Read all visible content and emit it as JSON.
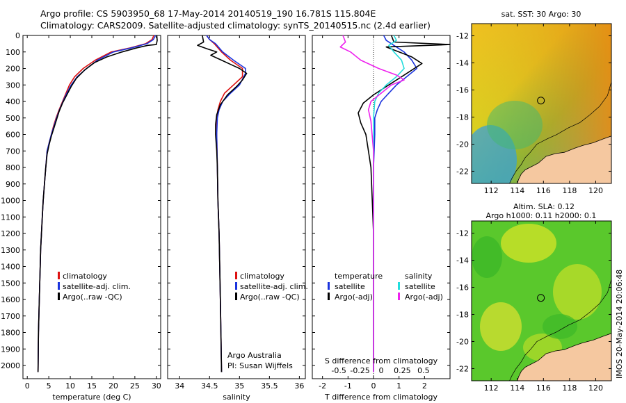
{
  "header": {
    "line1": "Argo profile: CS 5903950_68 17-May-2014 20140519_190 16.781S 115.804E",
    "line2": "Climatology: CARS2009. Satellite-adjusted climatology: synTS_20140515.nc (2.4d earlier)"
  },
  "colors": {
    "climatology": "#dd1111",
    "satellite": "#1a33dd",
    "argo": "#000000",
    "sal_satellite": "#22dddd",
    "sal_argo": "#ee22ee",
    "land": "#f5c8a0"
  },
  "chart_data": [
    {
      "type": "line",
      "name": "temperature-profile",
      "xlabel": "temperature (deg C)",
      "ylabel": "",
      "xlim": [
        -1,
        31
      ],
      "ylim": [
        2080,
        0
      ],
      "xticks": [
        0,
        5,
        10,
        15,
        20,
        25,
        30
      ],
      "yticks": [
        0,
        100,
        200,
        300,
        400,
        500,
        600,
        700,
        800,
        900,
        1000,
        1100,
        1200,
        1300,
        1400,
        1500,
        1600,
        1700,
        1800,
        1900,
        2000
      ],
      "legend": [
        "climatology",
        "satellite-adj. clim.",
        "Argo(..raw -QC)"
      ],
      "series": [
        {
          "name": "climatology",
          "color": "#dd1111",
          "x": [
            29.4,
            29.0,
            27.5,
            24.0,
            19.5,
            15.8,
            13.0,
            11.0,
            9.8,
            9.0,
            8.2,
            7.4,
            6.7,
            6.1,
            5.6,
            5.1,
            4.6,
            4.3,
            4.0,
            3.7,
            3.5,
            3.3,
            3.1,
            3.0,
            2.8,
            2.6,
            2.5
          ],
          "y": [
            0,
            25,
            50,
            75,
            100,
            150,
            200,
            250,
            300,
            350,
            400,
            450,
            500,
            550,
            600,
            650,
            700,
            800,
            900,
            1000,
            1100,
            1200,
            1300,
            1400,
            1600,
            1800,
            2040
          ]
        },
        {
          "name": "satellite-adj. clim.",
          "color": "#1a33dd",
          "x": [
            29.8,
            29.3,
            27.8,
            24.3,
            20.0,
            16.3,
            13.8,
            11.6,
            10.2,
            9.2,
            8.3,
            7.5,
            6.8,
            6.2,
            5.6,
            5.1,
            4.6,
            4.3,
            4.0,
            3.7,
            3.5,
            3.3,
            3.1,
            3.0,
            2.8,
            2.6,
            2.5
          ],
          "y": [
            0,
            25,
            50,
            75,
            100,
            150,
            200,
            250,
            300,
            350,
            400,
            450,
            500,
            550,
            600,
            650,
            700,
            800,
            900,
            1000,
            1100,
            1200,
            1300,
            1400,
            1600,
            1800,
            2040
          ]
        },
        {
          "name": "Argo(..raw -QC)",
          "color": "#000000",
          "x": [
            30.1,
            30.2,
            30.0,
            28.0,
            25.5,
            22.0,
            18.5,
            15.6,
            13.3,
            11.4,
            10.2,
            9.2,
            8.2,
            7.4,
            6.8,
            6.2,
            5.6,
            5.1,
            4.6,
            4.3,
            4.0,
            3.7,
            3.5,
            3.3,
            3.1,
            3.0,
            2.8,
            2.6,
            2.5
          ],
          "y": [
            0,
            30,
            55,
            60,
            75,
            100,
            130,
            165,
            210,
            260,
            310,
            360,
            410,
            460,
            510,
            560,
            610,
            660,
            720,
            800,
            900,
            1000,
            1100,
            1200,
            1300,
            1400,
            1600,
            1800,
            2040
          ]
        }
      ]
    },
    {
      "type": "line",
      "name": "salinity-profile",
      "xlabel": "salinity",
      "xlim": [
        33.8,
        36.1
      ],
      "ylim": [
        2080,
        0
      ],
      "xticks": [
        34,
        34.5,
        35,
        35.5,
        36
      ],
      "legend": [
        "climatology",
        "satellite-adj. clim.",
        "Argo(..raw -QC)"
      ],
      "annotation": [
        "Argo Australia",
        "PI: Susan Wijffels"
      ],
      "series": [
        {
          "name": "climatology",
          "color": "#dd1111",
          "x": [
            34.45,
            34.5,
            34.58,
            34.7,
            34.85,
            35.05,
            35.05,
            34.9,
            34.75,
            34.68,
            34.64,
            34.62,
            34.62,
            34.63,
            34.64,
            34.66,
            34.67,
            34.68,
            34.69,
            34.7
          ],
          "y": [
            0,
            25,
            50,
            100,
            150,
            200,
            250,
            300,
            350,
            400,
            450,
            500,
            600,
            800,
            1000,
            1200,
            1400,
            1600,
            1800,
            2040
          ]
        },
        {
          "name": "satellite-adj. clim.",
          "color": "#1a33dd",
          "x": [
            34.45,
            34.5,
            34.6,
            34.72,
            34.9,
            35.1,
            35.1,
            35.0,
            34.85,
            34.72,
            34.66,
            34.63,
            34.62,
            34.63,
            34.64,
            34.66,
            34.67,
            34.68,
            34.69,
            34.7
          ],
          "y": [
            0,
            25,
            50,
            100,
            150,
            200,
            230,
            300,
            350,
            400,
            450,
            500,
            600,
            800,
            1000,
            1200,
            1400,
            1600,
            1800,
            2040
          ]
        },
        {
          "name": "Argo(..raw -QC)",
          "color": "#000000",
          "x": [
            34.38,
            34.4,
            34.3,
            34.45,
            34.62,
            34.52,
            34.7,
            34.88,
            35.0,
            35.12,
            35.05,
            34.95,
            34.8,
            34.68,
            34.62,
            34.6,
            34.6,
            34.62,
            34.63,
            34.64,
            34.66,
            34.67,
            34.68,
            34.69,
            34.7
          ],
          "y": [
            0,
            40,
            60,
            80,
            100,
            120,
            150,
            180,
            200,
            230,
            270,
            310,
            360,
            420,
            480,
            540,
            600,
            700,
            800,
            1000,
            1200,
            1400,
            1600,
            1800,
            2040
          ]
        }
      ]
    },
    {
      "type": "line",
      "name": "difference-profile",
      "xlabel": "T difference from climatology",
      "xlabel_top": "S difference from climatology",
      "xlim": [
        -2.4,
        3.0
      ],
      "ylim": [
        2080,
        0
      ],
      "xticks": [
        -2,
        -1,
        0,
        1,
        2
      ],
      "xticks_top": [
        -0.5,
        -0.25,
        0,
        0.25,
        0.5
      ],
      "legend_temperature": {
        "title": "temperature",
        "items": [
          "satellite",
          "Argo(-adj)"
        ]
      },
      "legend_salinity": {
        "title": "salinity",
        "items": [
          "satellite",
          "Argo(-adj)"
        ]
      },
      "series": [
        {
          "name": "temperature satellite",
          "color": "#1a33dd",
          "x": [
            0.4,
            0.5,
            0.8,
            1.2,
            1.5,
            1.7,
            1.3,
            0.9,
            0.6,
            0.3,
            0.15,
            0.05,
            0.05,
            0.0,
            0.0,
            0.0,
            0.0,
            0.0
          ],
          "y": [
            0,
            30,
            60,
            100,
            150,
            200,
            250,
            300,
            350,
            400,
            450,
            500,
            600,
            800,
            1000,
            1400,
            1800,
            2040
          ]
        },
        {
          "name": "temperature Argo(-adj)",
          "color": "#000000",
          "x": [
            0.7,
            0.8,
            3.0,
            0.5,
            1.0,
            1.5,
            1.9,
            1.5,
            1.0,
            0.5,
            0.0,
            -0.4,
            -0.6,
            -0.5,
            -0.3,
            -0.2,
            -0.1,
            -0.05,
            0.0,
            0.0,
            0.0
          ],
          "y": [
            0,
            40,
            55,
            70,
            100,
            130,
            170,
            210,
            260,
            310,
            360,
            410,
            470,
            530,
            600,
            700,
            800,
            1000,
            1200,
            1600,
            2040
          ]
        },
        {
          "name": "salinity satellite",
          "color": "#22dddd",
          "x": [
            0.8,
            0.9,
            0.6,
            0.8,
            1.1,
            1.2,
            0.9,
            0.5,
            0.2,
            0.05,
            0.0,
            0.0,
            0.0
          ],
          "y": [
            0,
            30,
            60,
            100,
            150,
            200,
            250,
            300,
            350,
            400,
            500,
            1000,
            2040
          ]
        },
        {
          "name": "salinity Argo(-adj)",
          "color": "#ee22ee",
          "x": [
            -1.2,
            -1.1,
            -1.3,
            -0.9,
            -0.5,
            0.2,
            0.9,
            1.2,
            0.7,
            0.3,
            -0.1,
            -0.2,
            -0.1,
            0.0,
            0.0
          ],
          "y": [
            0,
            40,
            70,
            100,
            150,
            200,
            240,
            270,
            300,
            350,
            400,
            450,
            520,
            700,
            2040
          ]
        }
      ]
    }
  ],
  "map_sst": {
    "title": "sat. SST: 30 Argo: 30",
    "lat_ticks": [
      -12,
      -14,
      -16,
      -18,
      -20,
      -22
    ],
    "lon_ticks": [
      112,
      114,
      116,
      118,
      120
    ],
    "argo_position": {
      "lon": 115.804,
      "lat": -16.781
    }
  },
  "map_sla": {
    "title1": "Altim. SLA: 0.12",
    "title2": "Argo h1000: 0.11 h2000: 0.1",
    "lat_ticks": [
      -12,
      -14,
      -16,
      -18,
      -20,
      -22
    ],
    "lon_ticks": [
      112,
      114,
      116,
      118,
      120
    ],
    "argo_position": {
      "lon": 115.804,
      "lat": -16.781
    }
  },
  "map_extent": {
    "lon": [
      110.5,
      121.2
    ],
    "lat": [
      -22.9,
      -11.1
    ]
  },
  "credit": "IMOS 20-May-2014 20:06:48"
}
